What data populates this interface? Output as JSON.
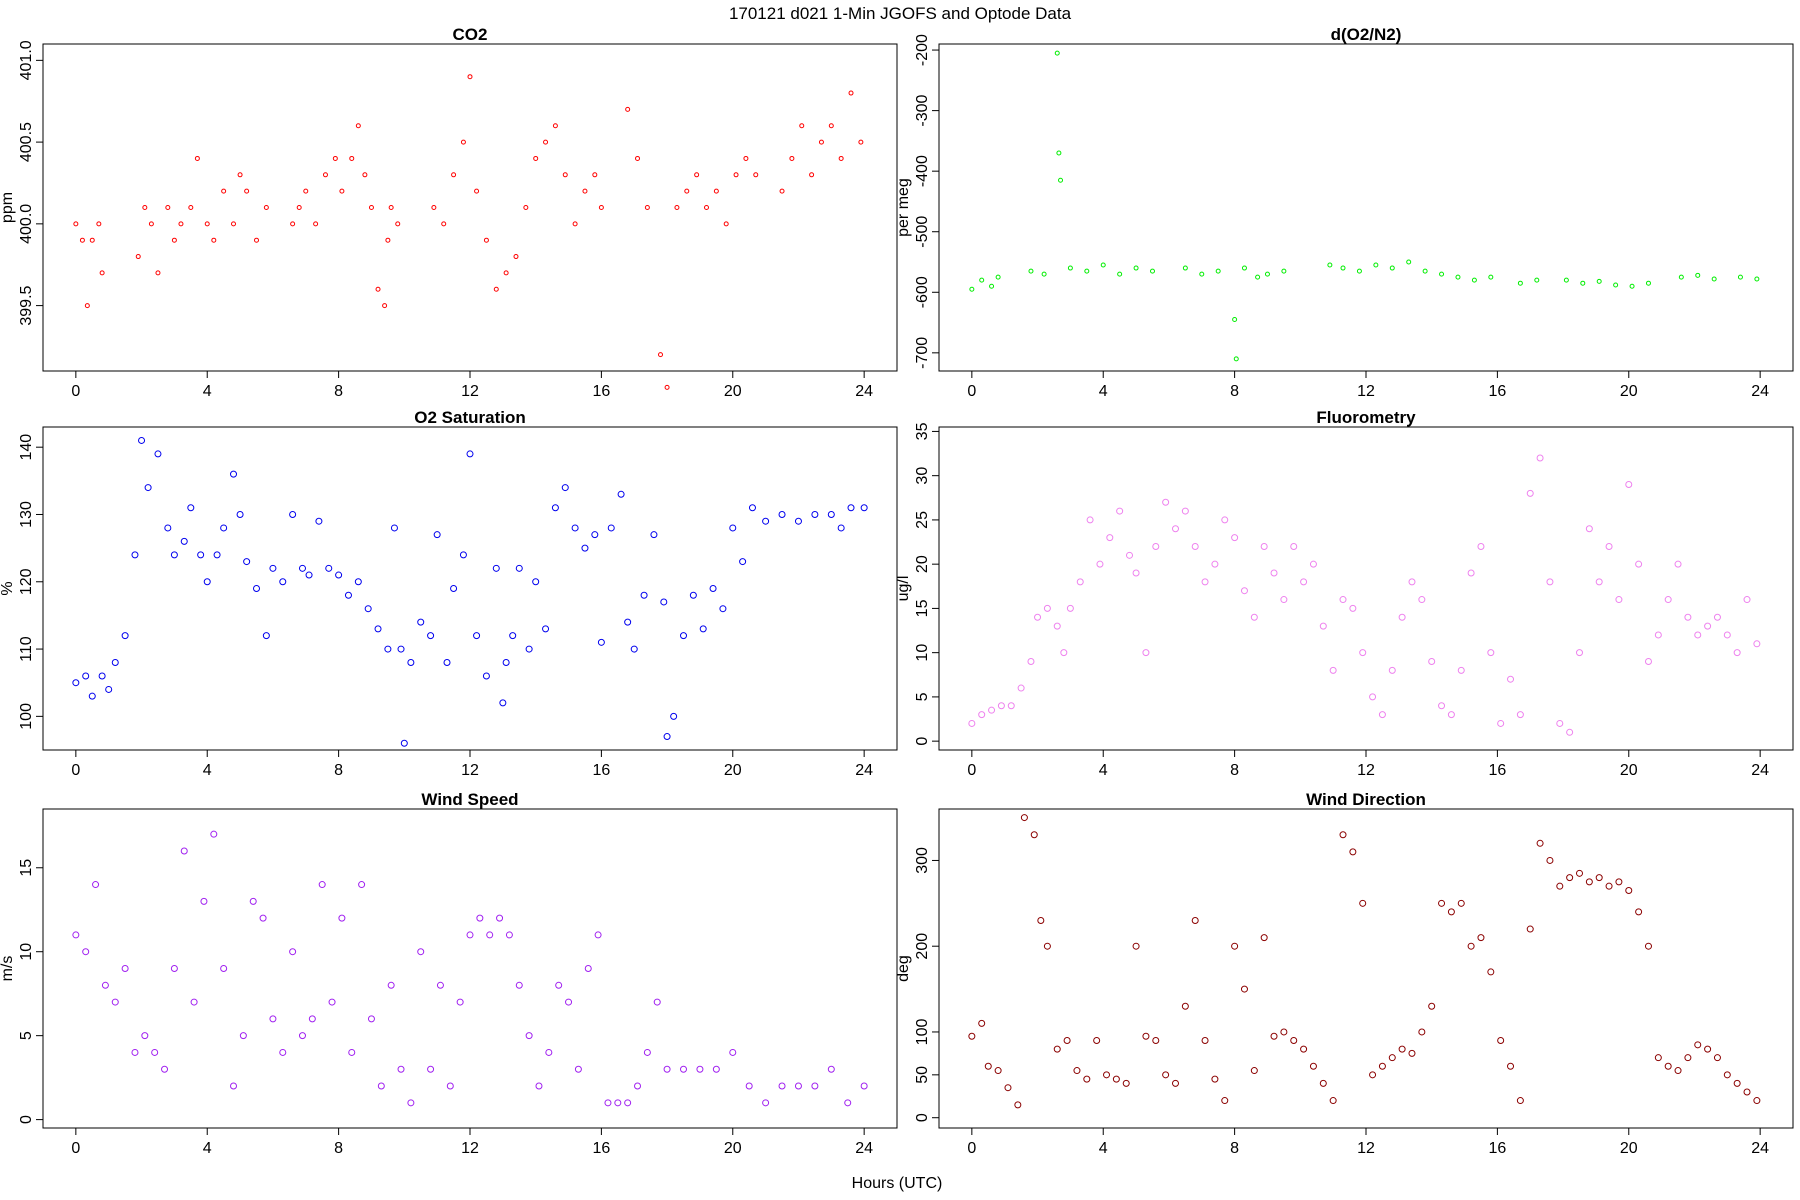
{
  "figure": {
    "title": "170121   d021   1-Min  JGOFS and Optode Data",
    "xlabel": "Hours (UTC)"
  },
  "chart_data": [
    {
      "type": "scatter",
      "title": "CO2",
      "ylabel": "ppm",
      "color": "#ff0000",
      "xlim": [
        -1,
        25
      ],
      "ylim": [
        399.1,
        401.1
      ],
      "xticks": [
        0,
        4,
        8,
        12,
        16,
        20,
        24
      ],
      "xticklabels": [
        "0",
        "4",
        "8",
        "12",
        "16",
        "20",
        "24"
      ],
      "yticks": [
        399.5,
        400.0,
        400.5,
        401.0
      ],
      "yticklabels": [
        "399.5",
        "400.0",
        "400.5",
        "401.0"
      ],
      "marker_size": 2,
      "x": [
        0.0,
        0.2,
        0.35,
        0.5,
        0.7,
        0.8,
        1.9,
        2.1,
        2.3,
        2.5,
        2.8,
        3.0,
        3.2,
        3.5,
        3.7,
        4.0,
        4.2,
        4.5,
        4.8,
        5.0,
        5.2,
        5.5,
        5.8,
        6.6,
        6.8,
        7.0,
        7.3,
        7.6,
        7.9,
        8.1,
        8.4,
        8.6,
        8.8,
        9.0,
        9.2,
        9.4,
        9.5,
        9.6,
        9.8,
        10.9,
        11.2,
        11.5,
        11.8,
        12.0,
        12.2,
        12.5,
        12.8,
        13.1,
        13.4,
        13.7,
        14.0,
        14.3,
        14.6,
        14.9,
        15.2,
        15.5,
        15.8,
        16.0,
        16.8,
        17.1,
        17.4,
        17.8,
        18.0,
        18.3,
        18.6,
        18.9,
        19.2,
        19.5,
        19.8,
        20.1,
        20.4,
        20.7,
        21.5,
        21.8,
        22.1,
        22.4,
        22.7,
        23.0,
        23.3,
        23.6,
        23.9
      ],
      "y": [
        400.0,
        399.9,
        399.5,
        399.9,
        400.0,
        399.7,
        399.8,
        400.1,
        400.0,
        399.7,
        400.1,
        399.9,
        400.0,
        400.1,
        400.4,
        400.0,
        399.9,
        400.2,
        400.0,
        400.3,
        400.2,
        399.9,
        400.1,
        400.0,
        400.1,
        400.2,
        400.0,
        400.3,
        400.4,
        400.2,
        400.4,
        400.6,
        400.3,
        400.1,
        399.6,
        399.5,
        399.9,
        400.1,
        400.0,
        400.1,
        400.0,
        400.3,
        400.5,
        400.9,
        400.2,
        399.9,
        399.6,
        399.7,
        399.8,
        400.1,
        400.4,
        400.5,
        400.6,
        400.3,
        400.0,
        400.2,
        400.3,
        400.1,
        400.7,
        400.4,
        400.1,
        399.2,
        399.0,
        400.1,
        400.2,
        400.3,
        400.1,
        400.2,
        400.0,
        400.3,
        400.4,
        400.3,
        400.2,
        400.4,
        400.6,
        400.3,
        400.5,
        400.6,
        400.4,
        400.8,
        400.5
      ]
    },
    {
      "type": "scatter",
      "title": "d(O2/N2)",
      "ylabel": "per meg",
      "color": "#00ee00",
      "xlim": [
        -1,
        25
      ],
      "ylim": [
        -730,
        -190
      ],
      "xticks": [
        0,
        4,
        8,
        12,
        16,
        20,
        24
      ],
      "xticklabels": [
        "0",
        "4",
        "8",
        "12",
        "16",
        "20",
        "24"
      ],
      "yticks": [
        -200,
        -300,
        -400,
        -500,
        -600,
        -700
      ],
      "yticklabels": [
        "-200",
        "-300",
        "-400",
        "-500",
        "-600",
        "-700"
      ],
      "marker_size": 2,
      "x": [
        0.0,
        0.3,
        0.6,
        0.8,
        1.8,
        2.2,
        2.6,
        2.65,
        2.7,
        3.0,
        3.5,
        4.0,
        4.5,
        5.0,
        5.5,
        6.5,
        7.0,
        7.5,
        8.0,
        8.05,
        8.3,
        8.7,
        9.0,
        9.5,
        10.9,
        11.3,
        11.8,
        12.3,
        12.8,
        13.3,
        13.8,
        14.3,
        14.8,
        15.3,
        15.8,
        16.7,
        17.2,
        18.1,
        18.6,
        19.1,
        19.6,
        20.1,
        20.6,
        21.6,
        22.1,
        22.6,
        23.4,
        23.9
      ],
      "y": [
        -595,
        -580,
        -590,
        -575,
        -565,
        -570,
        -205,
        -370,
        -415,
        -560,
        -565,
        -555,
        -570,
        -560,
        -565,
        -560,
        -570,
        -565,
        -645,
        -710,
        -560,
        -575,
        -570,
        -565,
        -555,
        -560,
        -565,
        -555,
        -560,
        -550,
        -565,
        -570,
        -575,
        -580,
        -575,
        -585,
        -580,
        -580,
        -585,
        -582,
        -588,
        -590,
        -585,
        -575,
        -572,
        -578,
        -575,
        -578
      ]
    },
    {
      "type": "scatter",
      "title": "O2 Saturation",
      "ylabel": "%",
      "color": "#0000ee",
      "xlim": [
        -1,
        25
      ],
      "ylim": [
        95,
        143
      ],
      "xticks": [
        0,
        4,
        8,
        12,
        16,
        20,
        24
      ],
      "xticklabels": [
        "0",
        "4",
        "8",
        "12",
        "16",
        "20",
        "24"
      ],
      "yticks": [
        100,
        110,
        120,
        130,
        140
      ],
      "yticklabels": [
        "100",
        "110",
        "120",
        "130",
        "140"
      ],
      "marker_size": 3,
      "x": [
        0.0,
        0.3,
        0.5,
        0.8,
        1.0,
        1.2,
        1.5,
        1.8,
        2.0,
        2.2,
        2.5,
        2.8,
        3.0,
        3.3,
        3.5,
        3.8,
        4.0,
        4.3,
        4.5,
        4.8,
        5.0,
        5.2,
        5.5,
        5.8,
        6.0,
        6.3,
        6.6,
        6.9,
        7.1,
        7.4,
        7.7,
        8.0,
        8.3,
        8.6,
        8.9,
        9.2,
        9.5,
        9.7,
        9.9,
        10.0,
        10.2,
        10.5,
        10.8,
        11.0,
        11.3,
        11.5,
        11.8,
        12.0,
        12.2,
        12.5,
        12.8,
        13.0,
        13.1,
        13.3,
        13.5,
        13.8,
        14.0,
        14.3,
        14.6,
        14.9,
        15.2,
        15.5,
        15.8,
        16.0,
        16.3,
        16.6,
        16.8,
        17.0,
        17.3,
        17.6,
        17.9,
        18.0,
        18.2,
        18.5,
        18.8,
        19.1,
        19.4,
        19.7,
        20.0,
        20.3,
        20.6,
        21.0,
        21.5,
        22.0,
        22.5,
        23.0,
        23.3,
        23.6,
        24.0
      ],
      "y": [
        105,
        106,
        103,
        106,
        104,
        108,
        112,
        124,
        141,
        134,
        139,
        128,
        124,
        126,
        131,
        124,
        120,
        124,
        128,
        136,
        130,
        123,
        119,
        112,
        122,
        120,
        130,
        122,
        121,
        129,
        122,
        121,
        118,
        120,
        116,
        113,
        110,
        128,
        110,
        96,
        108,
        114,
        112,
        127,
        108,
        119,
        124,
        139,
        112,
        106,
        122,
        102,
        108,
        112,
        122,
        110,
        120,
        113,
        131,
        134,
        128,
        125,
        127,
        111,
        128,
        133,
        114,
        110,
        118,
        127,
        117,
        97,
        100,
        112,
        118,
        113,
        119,
        116,
        128,
        123,
        131,
        129,
        130,
        129,
        130,
        130,
        128,
        131,
        131
      ]
    },
    {
      "type": "scatter",
      "title": "Fluorometry",
      "ylabel": "ug/l",
      "color": "#ee82ee",
      "xlim": [
        -1,
        25
      ],
      "ylim": [
        -1,
        35.5
      ],
      "xticks": [
        0,
        4,
        8,
        12,
        16,
        20,
        24
      ],
      "xticklabels": [
        "0",
        "4",
        "8",
        "12",
        "16",
        "20",
        "24"
      ],
      "yticks": [
        0,
        5,
        10,
        15,
        20,
        25,
        30,
        35
      ],
      "yticklabels": [
        "0",
        "5",
        "10",
        "15",
        "20",
        "25",
        "30",
        "35"
      ],
      "marker_size": 3,
      "x": [
        0.0,
        0.3,
        0.6,
        0.9,
        1.2,
        1.5,
        1.8,
        2.0,
        2.3,
        2.6,
        2.8,
        3.0,
        3.3,
        3.6,
        3.9,
        4.2,
        4.5,
        4.8,
        5.0,
        5.3,
        5.6,
        5.9,
        6.2,
        6.5,
        6.8,
        7.1,
        7.4,
        7.7,
        8.0,
        8.3,
        8.6,
        8.9,
        9.2,
        9.5,
        9.8,
        10.1,
        10.4,
        10.7,
        11.0,
        11.3,
        11.6,
        11.9,
        12.2,
        12.5,
        12.8,
        13.1,
        13.4,
        13.7,
        14.0,
        14.3,
        14.6,
        14.9,
        15.2,
        15.5,
        15.8,
        16.1,
        16.4,
        16.7,
        17.0,
        17.3,
        17.6,
        17.9,
        18.2,
        18.5,
        18.8,
        19.1,
        19.4,
        19.7,
        20.0,
        20.3,
        20.6,
        20.9,
        21.2,
        21.5,
        21.8,
        22.1,
        22.4,
        22.7,
        23.0,
        23.3,
        23.6,
        23.9
      ],
      "y": [
        2,
        3,
        3.5,
        4,
        4,
        6,
        9,
        14,
        15,
        13,
        10,
        15,
        18,
        25,
        20,
        23,
        26,
        21,
        19,
        10,
        22,
        27,
        24,
        26,
        22,
        18,
        20,
        25,
        23,
        17,
        14,
        22,
        19,
        16,
        22,
        18,
        20,
        13,
        8,
        16,
        15,
        10,
        5,
        3,
        8,
        14,
        18,
        16,
        9,
        4,
        3,
        8,
        19,
        22,
        10,
        2,
        7,
        3,
        28,
        32,
        18,
        2,
        1,
        10,
        24,
        18,
        22,
        16,
        29,
        20,
        9,
        12,
        16,
        20,
        14,
        12,
        13,
        14,
        12,
        10,
        16,
        11
      ]
    },
    {
      "type": "scatter",
      "title": "Wind Speed",
      "ylabel": "m/s",
      "color": "#a020f0",
      "xlim": [
        -1,
        25
      ],
      "ylim": [
        -0.5,
        18.5
      ],
      "xticks": [
        0,
        4,
        8,
        12,
        16,
        20,
        24
      ],
      "xticklabels": [
        "0",
        "4",
        "8",
        "12",
        "16",
        "20",
        "24"
      ],
      "yticks": [
        0,
        5,
        10,
        15
      ],
      "yticklabels": [
        "0",
        "5",
        "10",
        "15"
      ],
      "marker_size": 3,
      "x": [
        0.0,
        0.3,
        0.6,
        0.9,
        1.2,
        1.5,
        1.8,
        2.1,
        2.4,
        2.7,
        3.0,
        3.3,
        3.6,
        3.9,
        4.2,
        4.5,
        4.8,
        5.1,
        5.4,
        5.7,
        6.0,
        6.3,
        6.6,
        6.9,
        7.2,
        7.5,
        7.8,
        8.1,
        8.4,
        8.7,
        9.0,
        9.3,
        9.6,
        9.9,
        10.2,
        10.5,
        10.8,
        11.1,
        11.4,
        11.7,
        12.0,
        12.3,
        12.6,
        12.9,
        13.2,
        13.5,
        13.8,
        14.1,
        14.4,
        14.7,
        15.0,
        15.3,
        15.6,
        15.9,
        16.2,
        16.5,
        16.8,
        17.1,
        17.4,
        17.7,
        18.0,
        18.5,
        19.0,
        19.5,
        20.0,
        20.5,
        21.0,
        21.5,
        22.0,
        22.5,
        23.0,
        23.5,
        24.0
      ],
      "y": [
        11,
        10,
        14,
        8,
        7,
        9,
        4,
        5,
        4,
        3,
        9,
        16,
        7,
        13,
        17,
        9,
        2,
        5,
        13,
        12,
        6,
        4,
        10,
        5,
        6,
        14,
        7,
        12,
        4,
        14,
        6,
        2,
        8,
        3,
        1,
        10,
        3,
        8,
        2,
        7,
        11,
        12,
        11,
        12,
        11,
        8,
        5,
        2,
        4,
        8,
        7,
        3,
        9,
        11,
        1,
        1,
        1,
        2,
        4,
        7,
        3,
        3,
        3,
        3,
        4,
        2,
        1,
        2,
        2,
        2,
        3,
        1,
        2
      ]
    },
    {
      "type": "scatter",
      "title": "Wind Direction",
      "ylabel": "deg",
      "color": "#8b0000",
      "xlim": [
        -1,
        25
      ],
      "ylim": [
        -12,
        360
      ],
      "xticks": [
        0,
        4,
        8,
        12,
        16,
        20,
        24
      ],
      "xticklabels": [
        "0",
        "4",
        "8",
        "12",
        "16",
        "20",
        "24"
      ],
      "yticks": [
        0,
        50,
        100,
        200,
        300
      ],
      "yticklabels": [
        "0",
        "50",
        "100",
        "200",
        "300"
      ],
      "marker_size": 3,
      "x": [
        0.0,
        0.3,
        0.5,
        0.8,
        1.1,
        1.4,
        1.6,
        1.9,
        2.1,
        2.3,
        2.6,
        2.9,
        3.2,
        3.5,
        3.8,
        4.1,
        4.4,
        4.7,
        5.0,
        5.3,
        5.6,
        5.9,
        6.2,
        6.5,
        6.8,
        7.1,
        7.4,
        7.7,
        8.0,
        8.3,
        8.6,
        8.9,
        9.2,
        9.5,
        9.8,
        10.1,
        10.4,
        10.7,
        11.0,
        11.3,
        11.6,
        11.9,
        12.2,
        12.5,
        12.8,
        13.1,
        13.4,
        13.7,
        14.0,
        14.3,
        14.6,
        14.9,
        15.2,
        15.5,
        15.8,
        16.1,
        16.4,
        16.7,
        17.0,
        17.3,
        17.6,
        17.9,
        18.2,
        18.5,
        18.8,
        19.1,
        19.4,
        19.7,
        20.0,
        20.3,
        20.6,
        20.9,
        21.2,
        21.5,
        21.8,
        22.1,
        22.4,
        22.7,
        23.0,
        23.3,
        23.6,
        23.9
      ],
      "y": [
        95,
        110,
        60,
        55,
        35,
        15,
        350,
        330,
        230,
        200,
        80,
        90,
        55,
        45,
        90,
        50,
        45,
        40,
        200,
        95,
        90,
        50,
        40,
        130,
        230,
        90,
        45,
        20,
        200,
        150,
        55,
        210,
        95,
        100,
        90,
        80,
        60,
        40,
        20,
        330,
        310,
        250,
        50,
        60,
        70,
        80,
        75,
        100,
        130,
        250,
        240,
        250,
        200,
        210,
        170,
        90,
        60,
        20,
        220,
        320,
        300,
        270,
        280,
        285,
        275,
        280,
        270,
        275,
        265,
        240,
        200,
        70,
        60,
        55,
        70,
        85,
        80,
        70,
        50,
        40,
        30,
        20
      ]
    }
  ]
}
